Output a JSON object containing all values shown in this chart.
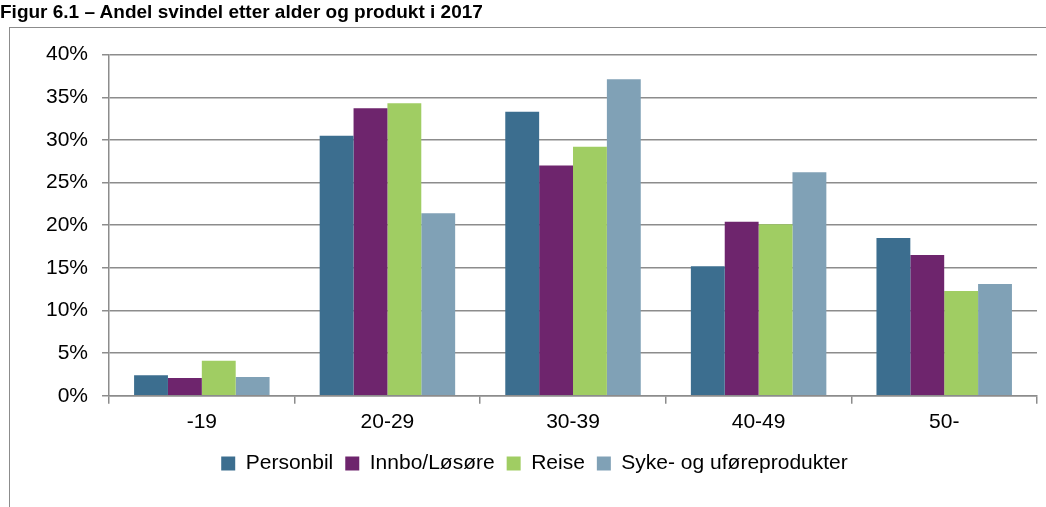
{
  "chart_data": {
    "type": "bar",
    "title": "Figur 6.1 – Andel svindel etter alder og produkt i 2017",
    "categories": [
      "-19",
      "20-29",
      "30-39",
      "40-49",
      "50-"
    ],
    "series": [
      {
        "name": "Personbil",
        "color": "#3c6e8f",
        "values": [
          2.4,
          30.5,
          33.3,
          15.2,
          18.5
        ]
      },
      {
        "name": "Innbo/Løsøre",
        "color": "#6e256d",
        "values": [
          2.1,
          33.7,
          27.0,
          20.4,
          16.5
        ]
      },
      {
        "name": "Reise",
        "color": "#a0cd63",
        "values": [
          4.1,
          34.3,
          29.2,
          20.1,
          12.3
        ]
      },
      {
        "name": "Syke- og uføreprodukter",
        "color": "#80a1b6",
        "values": [
          2.2,
          21.4,
          37.1,
          26.2,
          13.1
        ]
      }
    ],
    "ylim": [
      0,
      40
    ],
    "yticks": [
      {
        "value": 0,
        "label": "0%"
      },
      {
        "value": 5,
        "label": "5%"
      },
      {
        "value": 10,
        "label": "10%"
      },
      {
        "value": 15,
        "label": "15%"
      },
      {
        "value": 20,
        "label": "20%"
      },
      {
        "value": 25,
        "label": "25%"
      },
      {
        "value": 30,
        "label": "30%"
      },
      {
        "value": 35,
        "label": "35%"
      },
      {
        "value": 40,
        "label": "40%"
      }
    ],
    "grid": "y",
    "legend": "bottom"
  }
}
